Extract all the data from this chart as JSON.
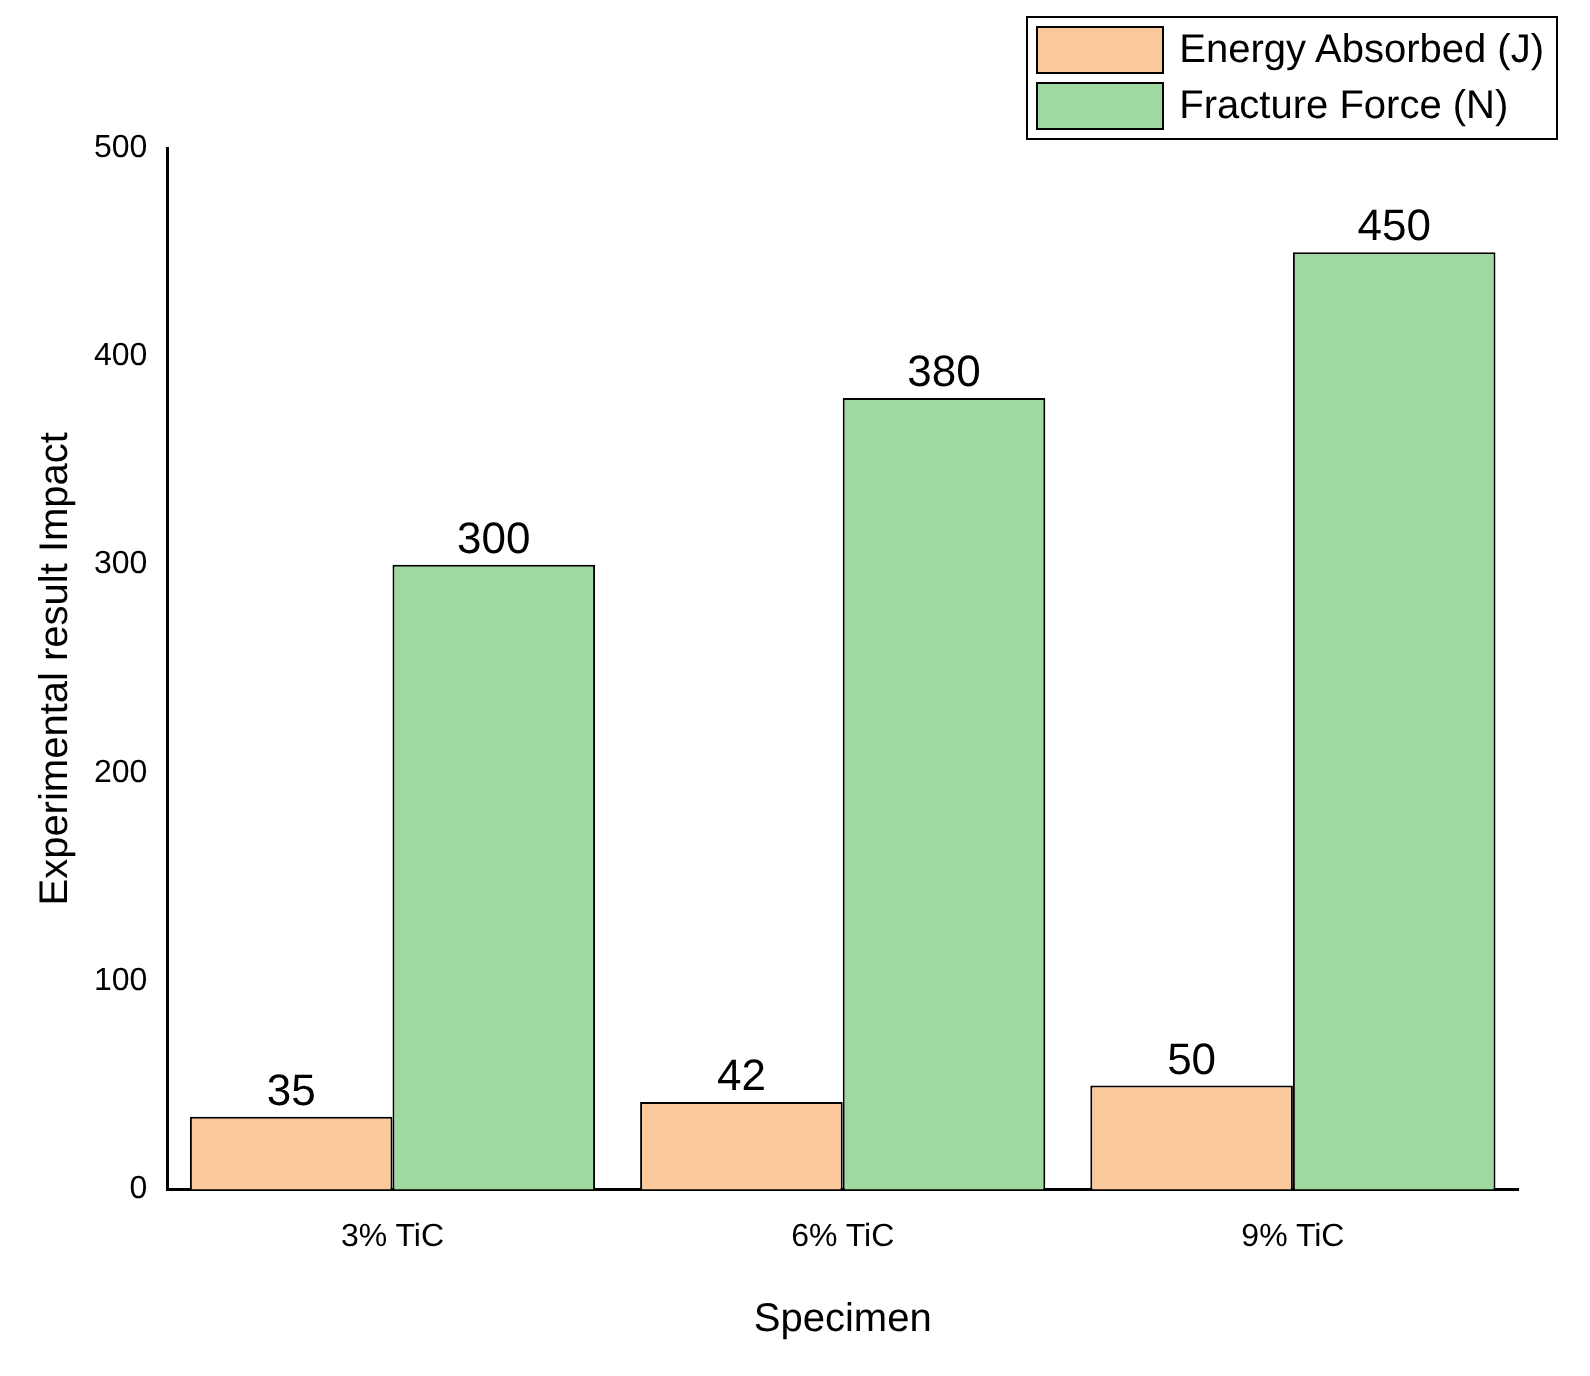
{
  "chart_data": {
    "type": "bar",
    "xlabel": "Specimen",
    "ylabel": "Experimental result Impact",
    "categories": [
      "3% TiC",
      "6% TiC",
      "9% TiC"
    ],
    "series": [
      {
        "name": "Energy Absorbed (J)",
        "color": "#fbc89b",
        "values": [
          35,
          42,
          50
        ]
      },
      {
        "name": "Fracture Force (N)",
        "color": "#9fd99f",
        "values": [
          300,
          380,
          450
        ]
      }
    ],
    "ylim": [
      0,
      500
    ],
    "yticks": [
      0,
      100,
      200,
      300,
      400,
      500
    ],
    "grid": false,
    "legend": "top right",
    "data_labels": true
  }
}
